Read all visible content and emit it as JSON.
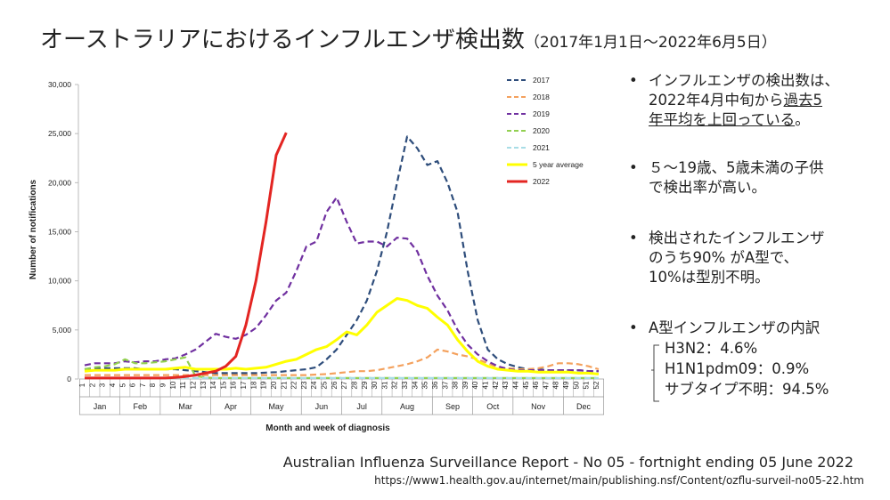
{
  "title": "オーストラリアにおけるインフルエンザ検出数",
  "title_note": "（2017年1月1日～2022年6月5日）",
  "chart_data": {
    "type": "line",
    "y_label": "Number of notifications",
    "x_label": "Month and week of diagnosis",
    "categories": [
      1,
      2,
      3,
      4,
      5,
      6,
      7,
      8,
      9,
      10,
      11,
      12,
      13,
      14,
      15,
      16,
      17,
      18,
      19,
      20,
      21,
      22,
      23,
      24,
      25,
      26,
      27,
      28,
      29,
      30,
      31,
      32,
      33,
      34,
      35,
      36,
      37,
      38,
      39,
      40,
      41,
      42,
      43,
      44,
      45,
      46,
      47,
      48,
      49,
      50,
      51,
      52
    ],
    "months": [
      "Jan",
      "Feb",
      "Mar",
      "Apr",
      "May",
      "Jun",
      "Jul",
      "Aug",
      "Sep",
      "Oct",
      "Nov",
      "Dec"
    ],
    "ylim": [
      0,
      30000
    ],
    "yticks": [
      0,
      {
        "value": 5000,
        "label": "5,000"
      },
      {
        "value": 10000,
        "label": "10,000"
      },
      {
        "value": 15000,
        "label": "15,000"
      },
      {
        "value": 20000,
        "label": "20,000"
      },
      {
        "value": 25000,
        "label": "25,000"
      },
      {
        "value": 30000,
        "label": "30,000"
      }
    ],
    "series": [
      {
        "name": "2017",
        "color": "#2e4d7b",
        "dashed": true,
        "values": [
          1000,
          1100,
          1100,
          1100,
          1100,
          1100,
          1000,
          1000,
          1000,
          1000,
          900,
          800,
          700,
          600,
          600,
          600,
          600,
          600,
          650,
          700,
          800,
          900,
          1000,
          1200,
          2000,
          3000,
          4500,
          6000,
          8000,
          11000,
          15000,
          20000,
          24700,
          23500,
          21800,
          22200,
          20000,
          17000,
          11000,
          6000,
          3000,
          2000,
          1500,
          1200,
          1000,
          1000,
          900,
          900,
          900,
          900,
          800,
          800
        ]
      },
      {
        "name": "2018",
        "color": "#f4a15d",
        "dashed": true,
        "values": [
          400,
          400,
          400,
          400,
          400,
          400,
          400,
          400,
          400,
          400,
          400,
          400,
          400,
          400,
          400,
          400,
          400,
          400,
          400,
          400,
          400,
          400,
          400,
          450,
          500,
          600,
          700,
          800,
          800,
          900,
          1100,
          1300,
          1500,
          1800,
          2200,
          3000,
          2800,
          2500,
          2300,
          2000,
          1600,
          1200,
          1100,
          1000,
          1000,
          1100,
          1300,
          1600,
          1600,
          1500,
          1300,
          1000
        ]
      },
      {
        "name": "2019",
        "color": "#7030a0",
        "dashed": true,
        "values": [
          1400,
          1600,
          1600,
          1600,
          1800,
          1700,
          1800,
          1800,
          2000,
          2100,
          2500,
          3000,
          3800,
          4600,
          4300,
          4100,
          4500,
          5200,
          6500,
          8000,
          8800,
          11000,
          13500,
          14000,
          17000,
          18500,
          16000,
          13800,
          14000,
          14000,
          13500,
          14400,
          14300,
          13000,
          10500,
          8500,
          7000,
          5000,
          3500,
          2500,
          1800,
          1300,
          1000,
          900,
          900,
          900,
          900,
          900,
          900,
          900,
          800,
          800
        ]
      },
      {
        "name": "2020",
        "color": "#92d050",
        "dashed": true,
        "values": [
          1000,
          1200,
          1300,
          1500,
          2000,
          1600,
          1600,
          1700,
          1800,
          2000,
          2200,
          300,
          150,
          100,
          100,
          100,
          100,
          100,
          100,
          100,
          100,
          100,
          100,
          100,
          100,
          100,
          100,
          100,
          100,
          100,
          100,
          100,
          100,
          100,
          100,
          100,
          100,
          100,
          100,
          100,
          100,
          100,
          100,
          100,
          100,
          100,
          100,
          100,
          100,
          100,
          100,
          100
        ]
      },
      {
        "name": "2021",
        "color": "#a8dde6",
        "dashed": true,
        "values": [
          100,
          100,
          100,
          100,
          100,
          100,
          100,
          100,
          100,
          100,
          100,
          100,
          100,
          100,
          100,
          100,
          100,
          100,
          100,
          100,
          100,
          100,
          100,
          100,
          100,
          100,
          100,
          100,
          100,
          100,
          100,
          100,
          100,
          100,
          100,
          100,
          100,
          100,
          100,
          100,
          100,
          100,
          100,
          100,
          100,
          100,
          100,
          100,
          100,
          100,
          100,
          100
        ]
      },
      {
        "name": "5 year average",
        "color": "#ffff00",
        "dashed": false,
        "values": [
          800,
          900,
          900,
          900,
          1000,
          1000,
          1000,
          1000,
          1000,
          1100,
          1200,
          1000,
          1000,
          1000,
          1000,
          1100,
          1000,
          1100,
          1200,
          1500,
          1800,
          2000,
          2500,
          3000,
          3300,
          4000,
          4800,
          4500,
          5500,
          6800,
          7500,
          8200,
          8000,
          7500,
          7200,
          6300,
          5500,
          4000,
          2800,
          1800,
          1300,
          1000,
          900,
          800,
          800,
          700,
          700,
          700,
          700,
          600,
          600,
          500
        ]
      },
      {
        "name": "2022",
        "color": "#e32522",
        "dashed": false,
        "values": [
          100,
          100,
          100,
          100,
          100,
          100,
          100,
          100,
          100,
          150,
          250,
          400,
          600,
          800,
          1300,
          2300,
          5500,
          10000,
          16000,
          22800,
          25100,
          null,
          null,
          null,
          null,
          null,
          null,
          null,
          null,
          null,
          null,
          null,
          null,
          null,
          null,
          null,
          null,
          null,
          null,
          null,
          null,
          null,
          null,
          null,
          null,
          null,
          null,
          null,
          null,
          null,
          null,
          null
        ]
      }
    ]
  },
  "notes": [
    {
      "lines": [
        [
          {
            "text": "インフルエンザの検出数は、"
          }
        ],
        [
          {
            "text": "2022年4月中旬から"
          },
          {
            "text": "過去5",
            "underline": true
          }
        ],
        [
          {
            "text": "年平均を上回っている",
            "underline": true
          },
          {
            "text": "。"
          }
        ]
      ]
    },
    {
      "lines": [
        [
          {
            "text": "５～19歳、5歳未満の子供"
          }
        ],
        [
          {
            "text": "で検出率が高い。"
          }
        ]
      ]
    },
    {
      "lines": [
        [
          {
            "text": "検出されたインフルエンザ"
          }
        ],
        [
          {
            "text": "のうち90% がA型で、"
          }
        ],
        [
          {
            "text": "10%は型別不明。"
          }
        ]
      ]
    },
    {
      "lines": [
        [
          {
            "text": "A型インフルエンザの内訳"
          }
        ]
      ],
      "items": [
        "H3N2：4.6%",
        "H1N1pdm09：0.9%",
        "サブタイプ不明：94.5%"
      ]
    }
  ],
  "source": "Australian Influenza Surveillance Report - No 05 - fortnight ending 05 June 2022",
  "url": "https://www1.health.gov.au/internet/main/publishing.nsf/Content/ozflu-surveil-no05-22.htm"
}
